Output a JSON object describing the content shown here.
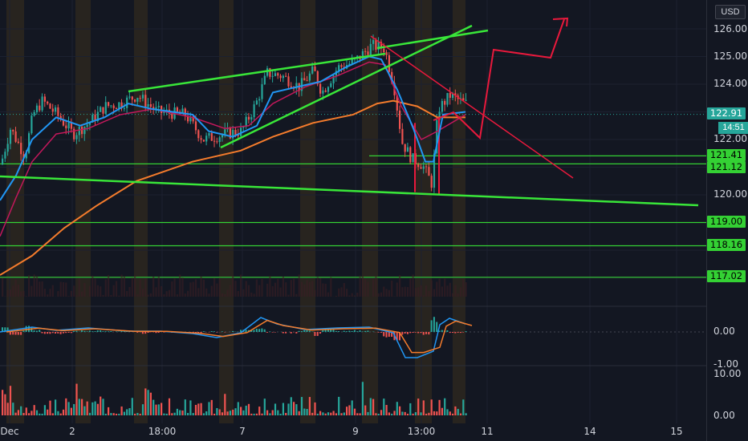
{
  "price_axis": {
    "currency": "USD",
    "ticks": [
      "126.00",
      "125.00",
      "124.00",
      "122.00",
      "120.00"
    ],
    "current_price": "122.91",
    "countdown": "14:51",
    "levels": [
      "121.41",
      "121.12",
      "119.00",
      "118.16",
      "117.02"
    ]
  },
  "macd_axis": {
    "ticks": [
      "0.00",
      "-1.00"
    ]
  },
  "volume_axis": {
    "ticks": [
      "10.00",
      "0.00"
    ]
  },
  "time_axis": {
    "labels": [
      "Dec",
      "2",
      "18:00",
      "7",
      "9",
      "13:00",
      "11",
      "14",
      "15"
    ]
  },
  "colors": {
    "background": "#131722",
    "up": "#26a69a",
    "down": "#ef5350",
    "trendline": "#39e639",
    "projection": "#e8193c",
    "ema_fast": "#2196f3",
    "ema_slow": "#f57c2c",
    "ema_mid": "#c2185b"
  },
  "chart_data": {
    "type": "candlestick",
    "price_range": [
      116.7,
      126.6
    ],
    "horizontal_levels": [
      121.41,
      121.12,
      119.0,
      118.16,
      117.02
    ],
    "current_price": 122.91,
    "indicators": [
      "price",
      "moving averages",
      "MACD",
      "volume"
    ]
  }
}
